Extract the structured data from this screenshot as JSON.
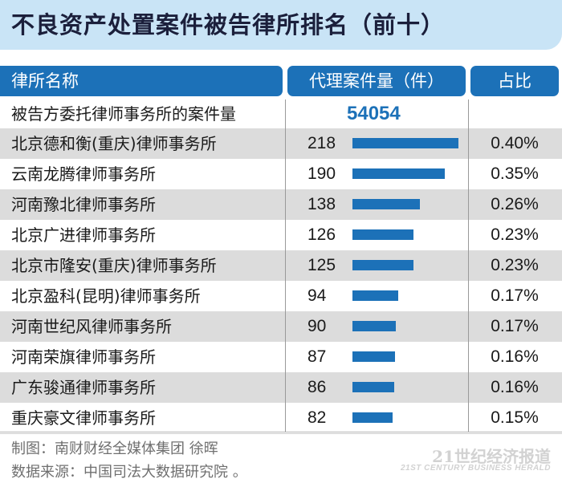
{
  "title": "不良资产处置案件被告律所排名（前十）",
  "headers": {
    "name": "律所名称",
    "count": "代理案件量（件）",
    "share": "占比"
  },
  "total": {
    "label": "被告方委托律师事务所的案件量",
    "value": "54054"
  },
  "chart_data": {
    "type": "bar",
    "title": "不良资产处置案件被告律所排名（前十）",
    "categories": [
      "北京德和衡(重庆)律师事务所",
      "云南龙腾律师事务所",
      "河南豫北律师事务所",
      "北京广进律师事务所",
      "北京市隆安(重庆)律师事务所",
      "北京盈科(昆明)律师事务所",
      "河南世纪风律师事务所",
      "河南荣旗律师事务所",
      "广东骏通律师事务所",
      "重庆豪文律师事务所"
    ],
    "values": [
      218,
      190,
      138,
      126,
      125,
      94,
      90,
      87,
      86,
      82
    ],
    "shares": [
      "0.40%",
      "0.35%",
      "0.26%",
      "0.23%",
      "0.23%",
      "0.17%",
      "0.17%",
      "0.16%",
      "0.16%",
      "0.15%"
    ],
    "bar_color": "#1c71b8",
    "orientation": "horizontal"
  },
  "footer": {
    "maker": "制图：南财财经全媒体集团 徐晖",
    "source": "数据来源：中国司法大数据研究院 。"
  },
  "watermark": {
    "main": "21世纪经济报道",
    "sub": "21ST CENTURY BUSINESS HERALD"
  },
  "colors": {
    "header_bg": "#1c71b8",
    "title_bg": "#c9e4f6",
    "shaded_row": "#dcdcdc"
  }
}
